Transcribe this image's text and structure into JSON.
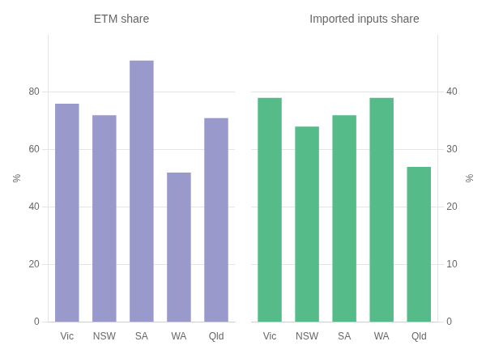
{
  "chart_data": [
    {
      "type": "bar",
      "title": "ETM share",
      "ylabel": "%",
      "categories": [
        "Vic",
        "NSW",
        "SA",
        "WA",
        "Qld"
      ],
      "values": [
        76,
        72,
        91,
        52,
        71
      ],
      "color": "#9999CC",
      "ylim": [
        0,
        100
      ],
      "yticks": [
        0,
        20,
        40,
        60,
        80
      ],
      "grid": true
    },
    {
      "type": "bar",
      "title": "Imported inputs share",
      "ylabel": "%",
      "categories": [
        "Vic",
        "NSW",
        "SA",
        "WA",
        "Qld"
      ],
      "values": [
        39,
        34,
        36,
        39,
        27
      ],
      "color": "#55BB88",
      "ylim": [
        0,
        50
      ],
      "yticks": [
        0,
        10,
        20,
        30,
        40
      ],
      "grid": true
    }
  ]
}
